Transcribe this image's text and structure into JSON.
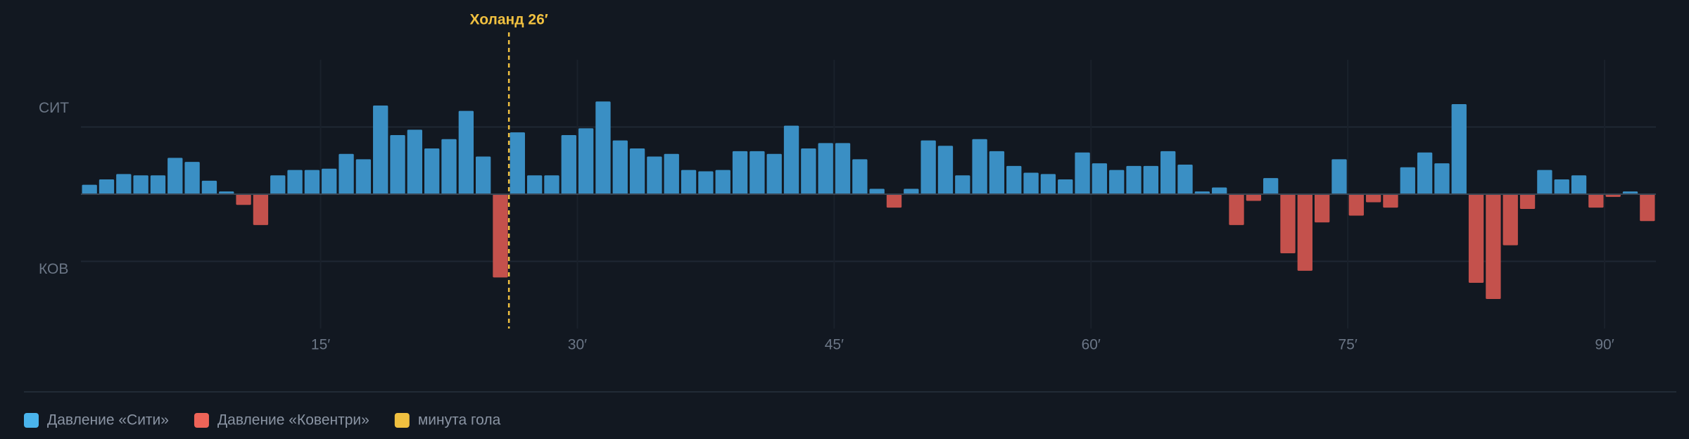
{
  "chart_data": {
    "type": "bar",
    "x": [
      1,
      2,
      3,
      4,
      5,
      6,
      7,
      8,
      9,
      10,
      11,
      12,
      13,
      14,
      15,
      16,
      17,
      18,
      19,
      20,
      21,
      22,
      23,
      24,
      25,
      26,
      27,
      28,
      29,
      30,
      31,
      32,
      33,
      34,
      35,
      36,
      37,
      38,
      39,
      40,
      41,
      42,
      43,
      44,
      45,
      46,
      47,
      48,
      49,
      50,
      51,
      52,
      53,
      54,
      55,
      56,
      57,
      58,
      59,
      60,
      61,
      62,
      63,
      64,
      65,
      66,
      67,
      68,
      69,
      70,
      71,
      72,
      73,
      74,
      75,
      76,
      77,
      78,
      79,
      80,
      81,
      82,
      83,
      84,
      85,
      86,
      87,
      88,
      89,
      90,
      91,
      92
    ],
    "values": [
      0.07,
      0.11,
      0.15,
      0.14,
      0.14,
      0.27,
      0.24,
      0.1,
      0.02,
      -0.08,
      -0.23,
      0.14,
      0.18,
      0.18,
      0.19,
      0.3,
      0.26,
      0.66,
      0.44,
      0.48,
      0.34,
      0.41,
      0.62,
      0.28,
      -0.62,
      0.46,
      0.14,
      0.14,
      0.44,
      0.49,
      0.69,
      0.4,
      0.34,
      0.28,
      0.3,
      0.18,
      0.17,
      0.18,
      0.32,
      0.32,
      0.3,
      0.51,
      0.34,
      0.38,
      0.38,
      0.26,
      0.04,
      -0.1,
      0.04,
      0.4,
      0.36,
      0.14,
      0.41,
      0.32,
      0.21,
      0.16,
      0.15,
      0.11,
      0.31,
      0.23,
      0.18,
      0.21,
      0.21,
      0.32,
      0.22,
      0.02,
      0.05,
      -0.23,
      -0.05,
      0.12,
      -0.44,
      -0.57,
      -0.21,
      0.26,
      -0.16,
      -0.06,
      -0.1,
      0.2,
      0.31,
      0.23,
      0.67,
      -0.66,
      -0.78,
      -0.38,
      -0.11,
      0.18,
      0.11,
      0.14,
      -0.1,
      -0.02,
      0.02,
      -0.2
    ],
    "positive_color": "#3a8fc4",
    "negative_color": "#c4514c",
    "xlim": [
      1,
      93
    ],
    "ylim": [
      -1,
      1
    ],
    "xticks": [
      {
        "value": 15,
        "label": "15′"
      },
      {
        "value": 30,
        "label": "30′"
      },
      {
        "value": 45,
        "label": "45′"
      },
      {
        "value": 60,
        "label": "60′"
      },
      {
        "value": 75,
        "label": "75′"
      },
      {
        "value": 90,
        "label": "90′"
      }
    ],
    "yticks": [
      {
        "value": 0.5,
        "label": "СИТ"
      },
      {
        "value": -0.5,
        "label": "КОВ"
      }
    ],
    "grid": true,
    "annotations": [
      {
        "x": 26,
        "label": "Холанд 26′",
        "color": "#f0c040"
      }
    ],
    "legend": [
      {
        "name": "Давление «Сити»",
        "color": "#4ab4ec"
      },
      {
        "name": "Давление «Ковентри»",
        "color": "#ee6458"
      },
      {
        "name": "минута гола",
        "color": "#f0c040"
      }
    ]
  }
}
